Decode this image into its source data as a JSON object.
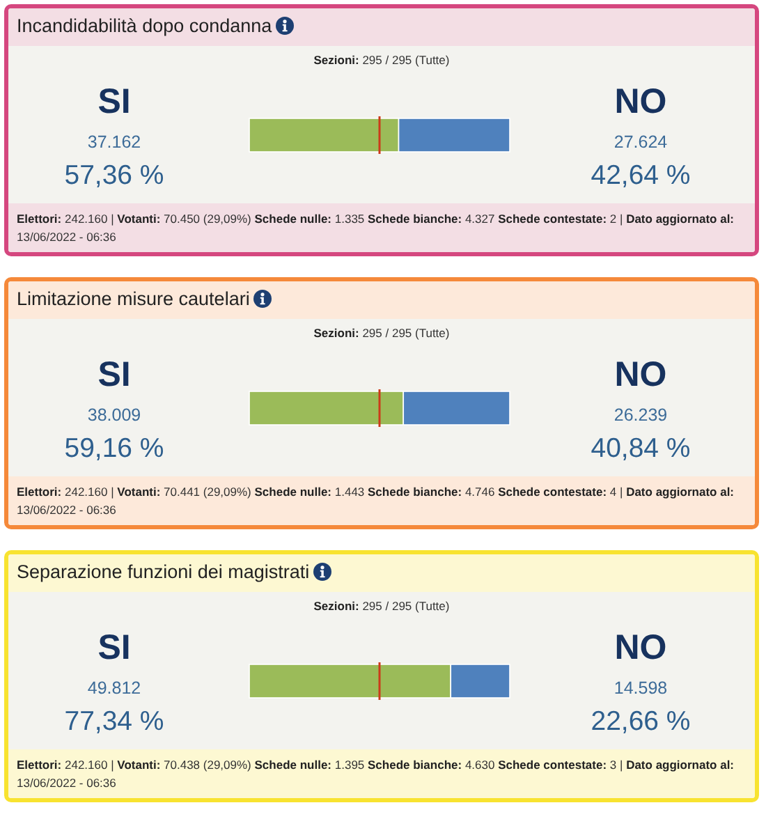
{
  "chart_data": [
    {
      "type": "bar",
      "orientation": "horizontal",
      "stacked": true,
      "title": "Incandidabilità dopo condanna",
      "subtitle": "Sezioni: 295 / 295 (Tutte)",
      "categories": [
        null
      ],
      "series": [
        {
          "color": "#9bbb59",
          "values": [
            57.36
          ],
          "value_labels": [
            "57,36 %"
          ]
        },
        {
          "color": "#4f81bd",
          "values": [
            42.64
          ],
          "value_labels": [
            "42,64 %"
          ]
        }
      ],
      "xlim": [
        0,
        100
      ],
      "tick_labels": false,
      "ref_lines": [
        {
          "axis": "x",
          "value": 50,
          "color": "#cc3a1a"
        }
      ],
      "annotations": [
        "SI",
        "37.162",
        "NO",
        "27.624",
        "Elettori: 242.160 | Votanti: 70.450 (29,09%) Schede nulle: 1.335 Schede bianche: 4.327 Schede contestate: 2 | Dato aggiornato al: 13/06/2022 - 06:36"
      ]
    },
    {
      "type": "bar",
      "orientation": "horizontal",
      "stacked": true,
      "title": "Limitazione misure cautelari",
      "subtitle": "Sezioni: 295 / 295 (Tutte)",
      "categories": [
        null
      ],
      "series": [
        {
          "color": "#9bbb59",
          "values": [
            59.16
          ],
          "value_labels": [
            "59,16 %"
          ]
        },
        {
          "color": "#4f81bd",
          "values": [
            40.84
          ],
          "value_labels": [
            "40,84 %"
          ]
        }
      ],
      "xlim": [
        0,
        100
      ],
      "tick_labels": false,
      "ref_lines": [
        {
          "axis": "x",
          "value": 50,
          "color": "#cc3a1a"
        }
      ],
      "annotations": [
        "SI",
        "38.009",
        "NO",
        "26.239",
        "Elettori: 242.160 | Votanti: 70.441 (29,09%) Schede nulle: 1.443 Schede bianche: 4.746 Schede contestate: 4 | Dato aggiornato al: 13/06/2022 - 06:36"
      ]
    },
    {
      "type": "bar",
      "orientation": "horizontal",
      "stacked": true,
      "title": "Separazione funzioni dei magistrati",
      "subtitle": "Sezioni: 295 / 295 (Tutte)",
      "categories": [
        null
      ],
      "series": [
        {
          "color": "#9bbb59",
          "values": [
            77.34
          ],
          "value_labels": [
            "77,34 %"
          ]
        },
        {
          "color": "#4f81bd",
          "values": [
            22.66
          ],
          "value_labels": [
            "22,66 %"
          ]
        }
      ],
      "xlim": [
        0,
        100
      ],
      "tick_labels": false,
      "ref_lines": [
        {
          "axis": "x",
          "value": 50,
          "color": "#cc3a1a"
        }
      ],
      "annotations": [
        "SI",
        "49.812",
        "NO",
        "14.598",
        "Elettori: 242.160 | Votanti: 70.438 (29,09%) Schede nulle: 1.395 Schede bianche: 4.630 Schede contestate: 3 | Dato aggiornato al: 13/06/2022 - 06:36"
      ]
    }
  ]
}
